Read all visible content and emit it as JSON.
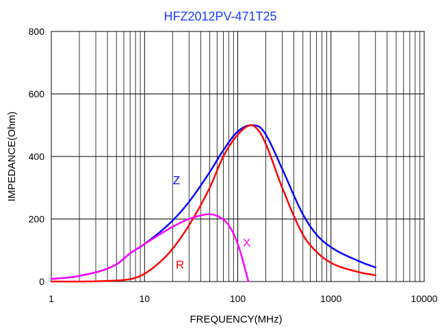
{
  "chart_data": {
    "type": "line",
    "title": "HFZ2012PV-471T25",
    "xlabel": "FREQUENCY(MHz)",
    "ylabel": "IMPEDANCE(Ohm)",
    "x_scale": "log",
    "xlim": [
      1,
      10000
    ],
    "ylim": [
      0,
      800
    ],
    "x_ticks": [
      "1",
      "10",
      "100",
      "1000",
      "10000"
    ],
    "y_ticks": [
      "0",
      "200",
      "400",
      "600",
      "800"
    ],
    "grid": true,
    "series": [
      {
        "name": "Z",
        "color": "#0000ff",
        "x": [
          1,
          2,
          5,
          7,
          10,
          20,
          30,
          50,
          70,
          100,
          140,
          170,
          200,
          300,
          500,
          700,
          1000,
          2000,
          3000
        ],
        "y": [
          8,
          18,
          55,
          90,
          120,
          195,
          255,
          350,
          420,
          480,
          500,
          495,
          470,
          360,
          215,
          150,
          110,
          65,
          45
        ]
      },
      {
        "name": "R",
        "color": "#ff0000",
        "x": [
          1,
          2,
          4,
          6,
          8,
          10,
          15,
          20,
          30,
          50,
          70,
          100,
          140,
          170,
          200,
          300,
          500,
          700,
          1000,
          2000,
          3000
        ],
        "y": [
          0,
          0,
          2,
          5,
          12,
          25,
          65,
          105,
          180,
          300,
          400,
          470,
          500,
          480,
          440,
          300,
          150,
          95,
          60,
          30,
          20
        ]
      },
      {
        "name": "X",
        "color": "#ff00ff",
        "x": [
          1,
          2,
          5,
          7,
          10,
          20,
          30,
          50,
          60,
          80,
          100,
          120,
          130
        ],
        "y": [
          8,
          18,
          55,
          90,
          120,
          175,
          200,
          215,
          210,
          180,
          120,
          40,
          0
        ]
      }
    ],
    "annotations": [
      {
        "text": "Z",
        "color": "#0000ff",
        "x": 22,
        "y": 325
      },
      {
        "text": "R",
        "color": "#ff0000",
        "x": 24,
        "y": 55
      },
      {
        "text": "X",
        "color": "#ff00ff",
        "x": 125,
        "y": 125
      }
    ]
  }
}
